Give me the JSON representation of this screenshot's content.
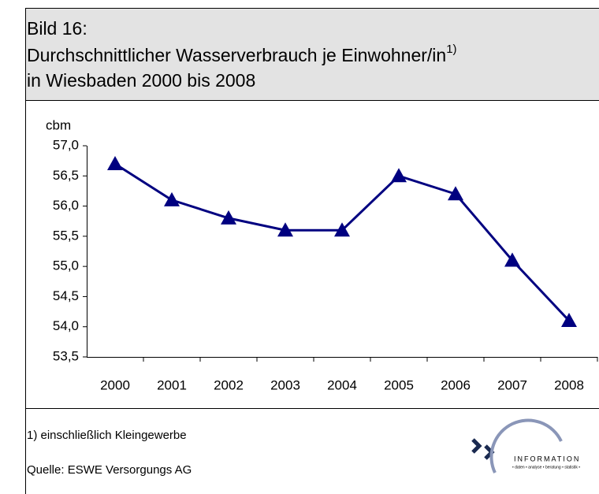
{
  "chart_data": {
    "type": "line",
    "title_lines": [
      "Bild 16:",
      "Durchschnittlicher Wasserverbrauch je Einwohner/in",
      "in Wiesbaden 2000 bis 2008"
    ],
    "title_footnote_mark": "1)",
    "y_label": "cbm",
    "categories": [
      "2000",
      "2001",
      "2002",
      "2003",
      "2004",
      "2005",
      "2006",
      "2007",
      "2008"
    ],
    "series": [
      {
        "name": "Wasserverbrauch",
        "color": "#000080",
        "values": [
          56.7,
          56.1,
          55.8,
          55.6,
          55.6,
          56.5,
          56.2,
          55.1,
          54.1
        ]
      }
    ],
    "ylim": [
      53.5,
      57.0
    ],
    "yticks": [
      {
        "value": 53.5,
        "label": "53,5"
      },
      {
        "value": 54.0,
        "label": "54,0"
      },
      {
        "value": 54.5,
        "label": "54,5"
      },
      {
        "value": 55.0,
        "label": "55,0"
      },
      {
        "value": 55.5,
        "label": "55,5"
      },
      {
        "value": 56.0,
        "label": "56,0"
      },
      {
        "value": 56.5,
        "label": "56,5"
      },
      {
        "value": 57.0,
        "label": "57,0"
      }
    ],
    "marker": "triangle",
    "footnote": "1)  einschließlich Kleingewerbe",
    "source": "Quelle:  ESWE Versorgungs AG",
    "logo_text": "INFORMATION",
    "logo_subtext": "• daten • analyse • beratung • statistik •"
  }
}
